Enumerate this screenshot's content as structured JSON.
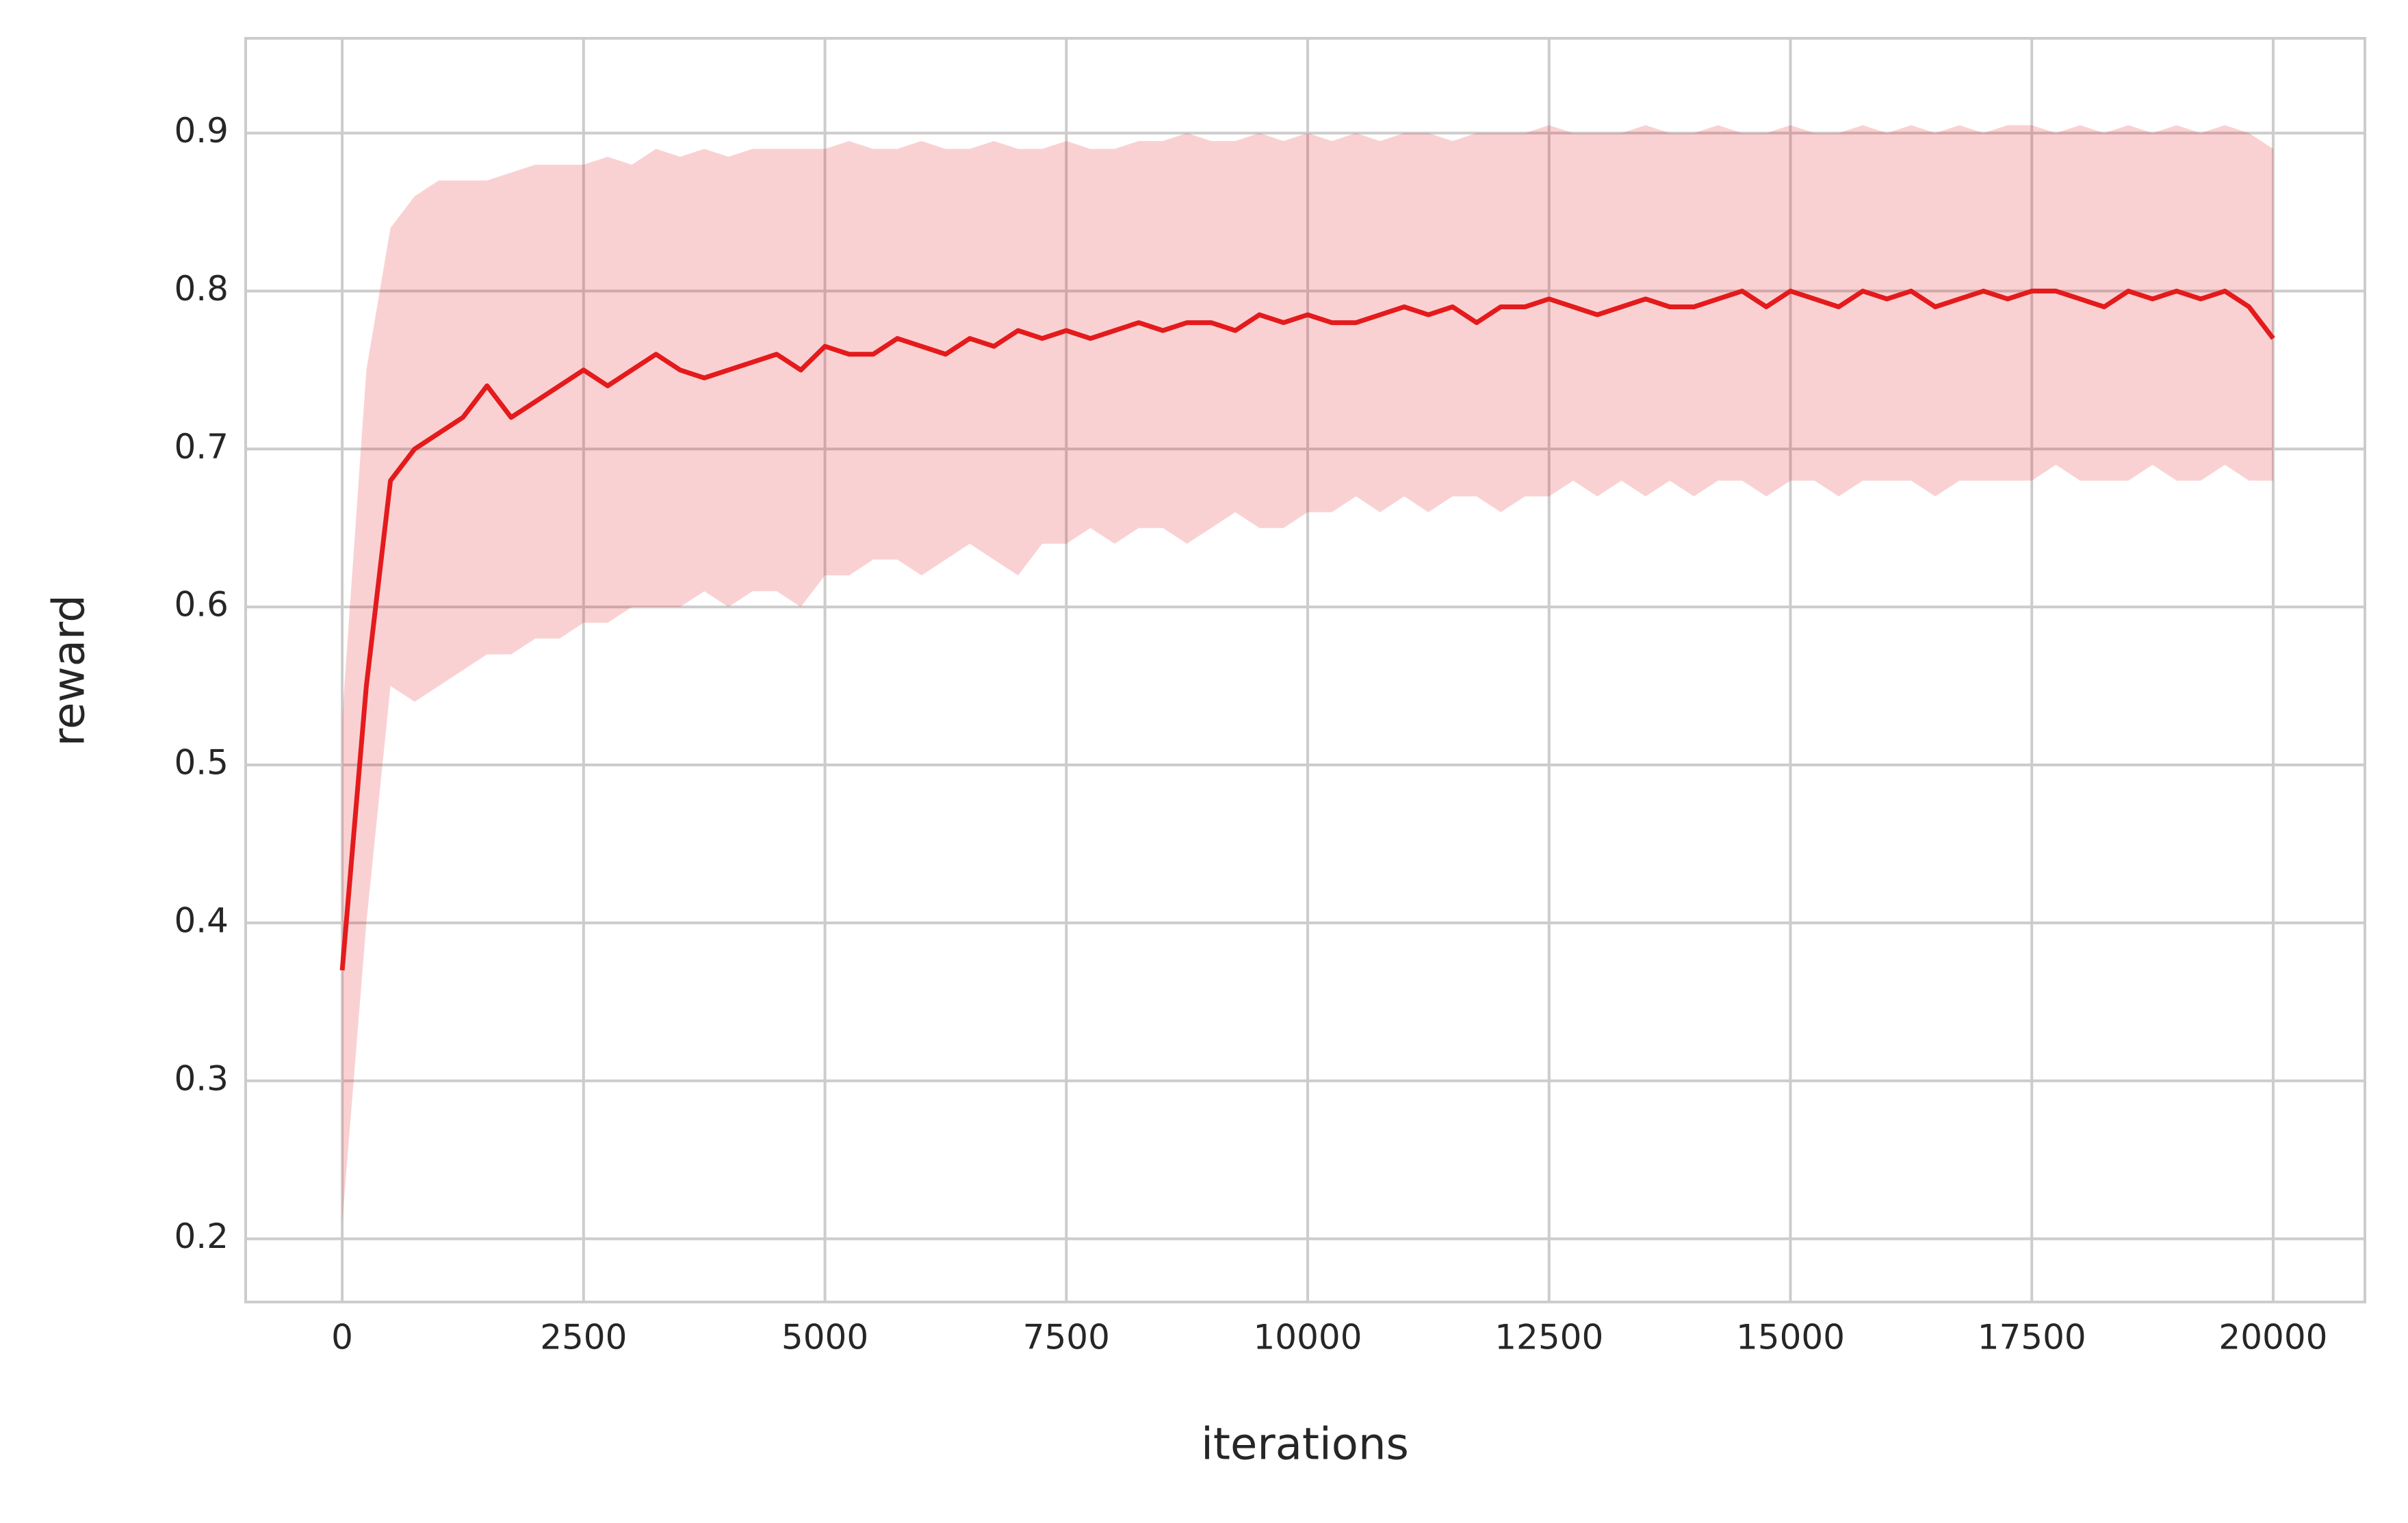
{
  "chart_data": {
    "type": "line",
    "xlabel": "iterations",
    "ylabel": "reward",
    "x": [
      0,
      250,
      500,
      750,
      1000,
      1250,
      1500,
      1750,
      2000,
      2250,
      2500,
      2750,
      3000,
      3250,
      3500,
      3750,
      4000,
      4250,
      4500,
      4750,
      5000,
      5250,
      5500,
      5750,
      6000,
      6250,
      6500,
      6750,
      7000,
      7250,
      7500,
      7750,
      8000,
      8250,
      8500,
      8750,
      9000,
      9250,
      9500,
      9750,
      10000,
      10250,
      10500,
      10750,
      11000,
      11250,
      11500,
      11750,
      12000,
      12250,
      12500,
      12750,
      13000,
      13250,
      13500,
      13750,
      14000,
      14250,
      14500,
      14750,
      15000,
      15250,
      15500,
      15750,
      16000,
      16250,
      16500,
      16750,
      17000,
      17250,
      17500,
      17750,
      18000,
      18250,
      18500,
      18750,
      19000,
      19250,
      19500,
      19750,
      20000
    ],
    "series": [
      {
        "color": "#e41a1c",
        "values": [
          0.37,
          0.55,
          0.68,
          0.7,
          0.71,
          0.72,
          0.74,
          0.72,
          0.73,
          0.74,
          0.75,
          0.74,
          0.75,
          0.76,
          0.75,
          0.745,
          0.75,
          0.755,
          0.76,
          0.75,
          0.765,
          0.76,
          0.76,
          0.77,
          0.765,
          0.76,
          0.77,
          0.765,
          0.775,
          0.77,
          0.775,
          0.77,
          0.775,
          0.78,
          0.775,
          0.78,
          0.78,
          0.775,
          0.785,
          0.78,
          0.785,
          0.78,
          0.78,
          0.785,
          0.79,
          0.785,
          0.79,
          0.78,
          0.79,
          0.79,
          0.795,
          0.79,
          0.785,
          0.79,
          0.795,
          0.79,
          0.79,
          0.795,
          0.8,
          0.79,
          0.8,
          0.795,
          0.79,
          0.8,
          0.795,
          0.8,
          0.79,
          0.795,
          0.8,
          0.795,
          0.8,
          0.8,
          0.795,
          0.79,
          0.8,
          0.795,
          0.8,
          0.795,
          0.8,
          0.79,
          0.77
        ],
        "upper": [
          0.53,
          0.75,
          0.84,
          0.86,
          0.87,
          0.87,
          0.87,
          0.875,
          0.88,
          0.88,
          0.88,
          0.885,
          0.88,
          0.89,
          0.885,
          0.89,
          0.885,
          0.89,
          0.89,
          0.89,
          0.89,
          0.895,
          0.89,
          0.89,
          0.895,
          0.89,
          0.89,
          0.895,
          0.89,
          0.89,
          0.895,
          0.89,
          0.89,
          0.895,
          0.895,
          0.9,
          0.895,
          0.895,
          0.9,
          0.895,
          0.9,
          0.895,
          0.9,
          0.895,
          0.9,
          0.9,
          0.895,
          0.9,
          0.9,
          0.9,
          0.905,
          0.9,
          0.9,
          0.9,
          0.905,
          0.9,
          0.9,
          0.905,
          0.9,
          0.9,
          0.905,
          0.9,
          0.9,
          0.905,
          0.9,
          0.905,
          0.9,
          0.905,
          0.9,
          0.905,
          0.905,
          0.9,
          0.905,
          0.9,
          0.905,
          0.9,
          0.905,
          0.9,
          0.905,
          0.9,
          0.89
        ],
        "lower": [
          0.21,
          0.4,
          0.55,
          0.54,
          0.55,
          0.56,
          0.57,
          0.57,
          0.58,
          0.58,
          0.59,
          0.59,
          0.6,
          0.6,
          0.6,
          0.61,
          0.6,
          0.61,
          0.61,
          0.6,
          0.62,
          0.62,
          0.63,
          0.63,
          0.62,
          0.63,
          0.64,
          0.63,
          0.62,
          0.64,
          0.64,
          0.65,
          0.64,
          0.65,
          0.65,
          0.64,
          0.65,
          0.66,
          0.65,
          0.65,
          0.66,
          0.66,
          0.67,
          0.66,
          0.67,
          0.66,
          0.67,
          0.67,
          0.66,
          0.67,
          0.67,
          0.68,
          0.67,
          0.68,
          0.67,
          0.68,
          0.67,
          0.68,
          0.68,
          0.67,
          0.68,
          0.68,
          0.67,
          0.68,
          0.68,
          0.68,
          0.67,
          0.68,
          0.68,
          0.68,
          0.68,
          0.69,
          0.68,
          0.68,
          0.68,
          0.69,
          0.68,
          0.68,
          0.69,
          0.68,
          0.68
        ]
      }
    ],
    "xlim": [
      -1000,
      20950
    ],
    "xticks": [
      0,
      2500,
      5000,
      7500,
      10000,
      12500,
      15000,
      17500,
      20000
    ],
    "ylim": [
      0.16,
      0.96
    ],
    "yticks": [
      0.2,
      0.3,
      0.4,
      0.5,
      0.6,
      0.7,
      0.8,
      0.9
    ],
    "grid": true
  }
}
